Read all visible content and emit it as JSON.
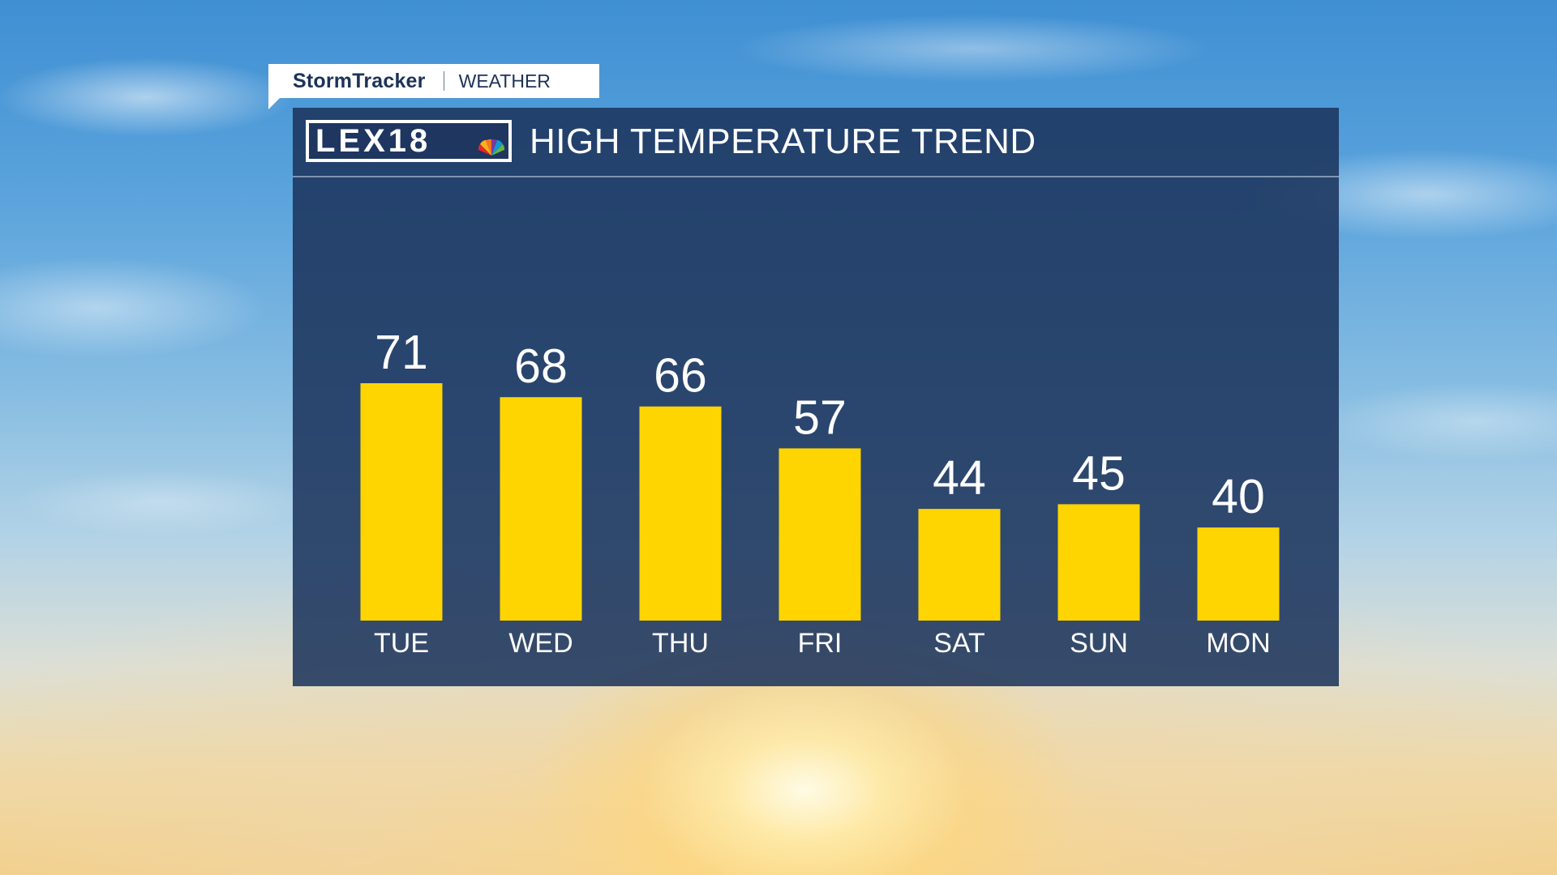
{
  "brand": {
    "name": "StormTracker",
    "section": "WEATHER"
  },
  "logo": {
    "text": "LEX18"
  },
  "colors": {
    "bar": "#fed501",
    "panel": "#1b345c",
    "text": "#ffffff",
    "brand_text": "#1d3257"
  },
  "chart_data": {
    "type": "bar",
    "title": "HIGH TEMPERATURE TREND",
    "categories": [
      "TUE",
      "WED",
      "THU",
      "FRI",
      "SAT",
      "SUN",
      "MON"
    ],
    "values": [
      71,
      68,
      66,
      57,
      44,
      45,
      40
    ],
    "xlabel": "",
    "ylabel": "",
    "ylim": [
      20,
      71
    ],
    "grid": false,
    "data_labels": true
  }
}
